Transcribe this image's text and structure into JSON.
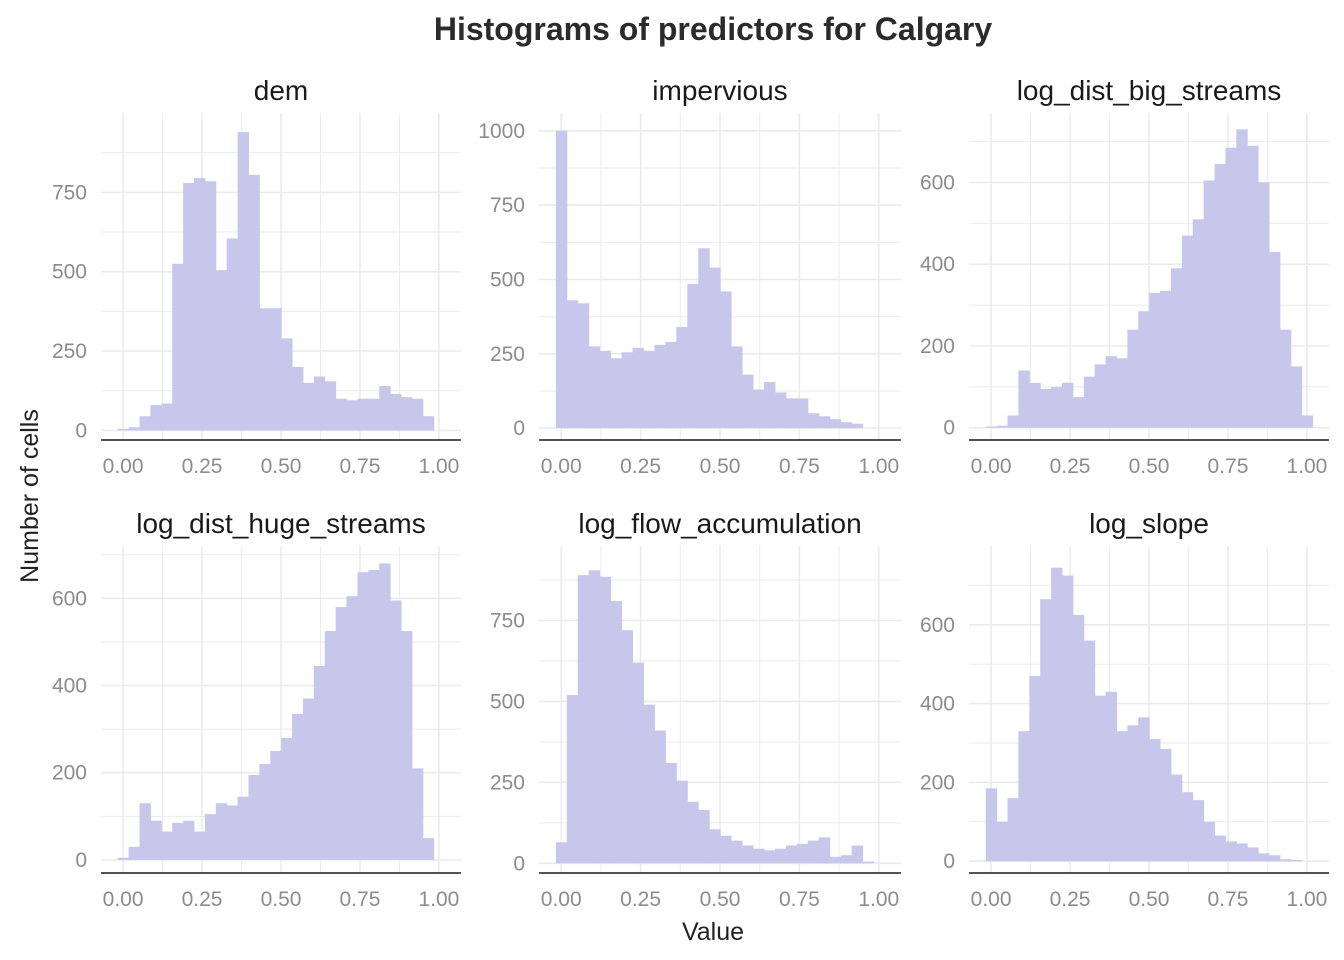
{
  "chart_data": {
    "type": "bar",
    "title": "Histograms of predictors for Calgary",
    "xlabel": "Value",
    "ylabel": "Number of cells",
    "bar_color": "#c7c7ec",
    "grid_color": "#ebebeb",
    "axis_line_color": "#1a1a1a",
    "grid": true,
    "facets": [
      {
        "name": "dem",
        "xlim": [
          -0.07,
          1.07
        ],
        "ylim": [
          -30,
          1000
        ],
        "x_ticks": [
          "0.00",
          "0.25",
          "0.50",
          "0.75",
          "1.00"
        ],
        "y_ticks": [
          "0",
          "250",
          "500",
          "750"
        ],
        "bin_start": -0.017,
        "bin_width": 0.0345,
        "values": [
          5,
          10,
          45,
          80,
          85,
          525,
          780,
          795,
          785,
          505,
          605,
          940,
          805,
          385,
          385,
          290,
          200,
          150,
          170,
          155,
          100,
          95,
          100,
          100,
          140,
          115,
          105,
          100,
          45
        ]
      },
      {
        "name": "impervious",
        "xlim": [
          -0.07,
          1.07
        ],
        "ylim": [
          -40,
          1060
        ],
        "x_ticks": [
          "0.00",
          "0.25",
          "0.50",
          "0.75",
          "1.00"
        ],
        "y_ticks": [
          "0",
          "250",
          "500",
          "750",
          "1000"
        ],
        "bin_start": -0.017,
        "bin_width": 0.0345,
        "values": [
          1000,
          430,
          420,
          275,
          260,
          235,
          255,
          270,
          260,
          280,
          290,
          340,
          485,
          605,
          540,
          460,
          275,
          180,
          130,
          155,
          120,
          100,
          100,
          50,
          40,
          30,
          20,
          15
        ]
      },
      {
        "name": "log_dist_big_streams",
        "xlim": [
          -0.07,
          1.07
        ],
        "ylim": [
          -30,
          770
        ],
        "x_ticks": [
          "0.00",
          "0.25",
          "0.50",
          "0.75",
          "1.00"
        ],
        "y_ticks": [
          "0",
          "200",
          "400",
          "600"
        ],
        "bin_start": -0.017,
        "bin_width": 0.0345,
        "values": [
          3,
          5,
          30,
          140,
          110,
          95,
          100,
          110,
          75,
          125,
          155,
          175,
          170,
          240,
          285,
          330,
          335,
          390,
          470,
          510,
          605,
          645,
          685,
          730,
          690,
          600,
          430,
          240,
          150,
          30
        ]
      },
      {
        "name": "log_dist_huge_streams",
        "xlim": [
          -0.07,
          1.07
        ],
        "ylim": [
          -30,
          720
        ],
        "x_ticks": [
          "0.00",
          "0.25",
          "0.50",
          "0.75",
          "1.00"
        ],
        "y_ticks": [
          "0",
          "200",
          "400",
          "600"
        ],
        "bin_start": -0.017,
        "bin_width": 0.0345,
        "values": [
          5,
          30,
          130,
          90,
          65,
          85,
          90,
          65,
          105,
          130,
          125,
          145,
          195,
          220,
          250,
          280,
          335,
          370,
          445,
          525,
          580,
          605,
          660,
          665,
          680,
          595,
          525,
          210,
          50
        ]
      },
      {
        "name": "log_flow_accumulation",
        "xlim": [
          -0.07,
          1.07
        ],
        "ylim": [
          -30,
          980
        ],
        "x_ticks": [
          "0.00",
          "0.25",
          "0.50",
          "0.75",
          "1.00"
        ],
        "y_ticks": [
          "0",
          "250",
          "500",
          "750"
        ],
        "bin_start": -0.017,
        "bin_width": 0.0345,
        "values": [
          65,
          520,
          890,
          905,
          885,
          810,
          720,
          620,
          490,
          410,
          310,
          255,
          190,
          165,
          105,
          85,
          70,
          55,
          45,
          40,
          45,
          55,
          60,
          70,
          80,
          20,
          25,
          55,
          5
        ]
      },
      {
        "name": "log_slope",
        "xlim": [
          -0.07,
          1.07
        ],
        "ylim": [
          -30,
          800
        ],
        "x_ticks": [
          "0.00",
          "0.25",
          "0.50",
          "0.75",
          "1.00"
        ],
        "y_ticks": [
          "0",
          "200",
          "400",
          "600"
        ],
        "bin_start": -0.017,
        "bin_width": 0.0345,
        "values": [
          185,
          100,
          160,
          330,
          470,
          665,
          745,
          725,
          625,
          560,
          420,
          430,
          330,
          345,
          365,
          310,
          285,
          220,
          175,
          155,
          100,
          65,
          50,
          45,
          35,
          20,
          15,
          5,
          3
        ]
      }
    ]
  }
}
